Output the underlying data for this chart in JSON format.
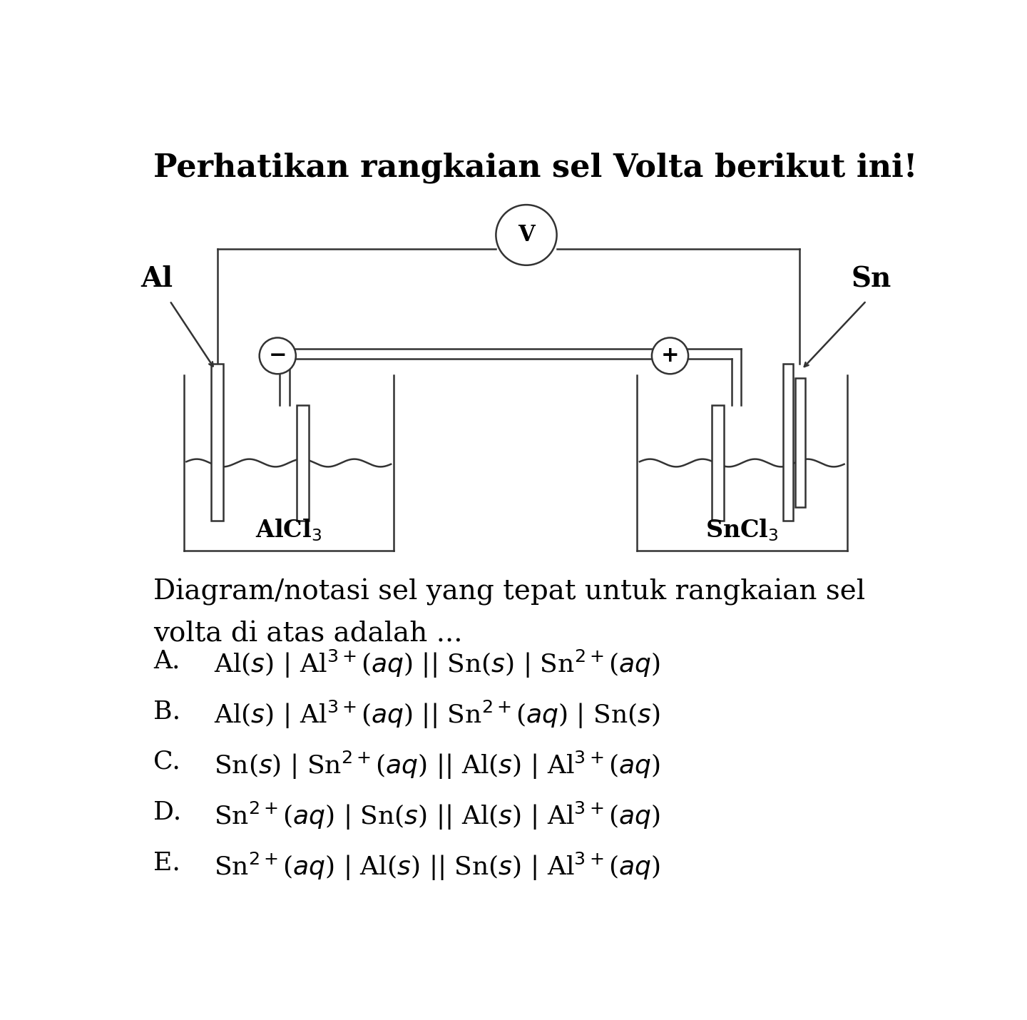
{
  "title": "Perhatikan rangkaian sel Volta berikut ini!",
  "title_fontsize": 32,
  "bg_color": "#ffffff",
  "line_color": "#333333",
  "question_line1": "Diagram/notasi sel yang tepat untuk rangkaian sel",
  "question_line2": "volta di atas adalah ...",
  "question_fontsize": 28,
  "options": [
    {
      "label": "A.",
      "text": "Al($s$) | Al$^{3+}$($aq$) || Sn($s$) | Sn$^{2+}$($aq$)"
    },
    {
      "label": "B.",
      "text": "Al($s$) | Al$^{3+}$($aq$) || Sn$^{2+}$($aq$) | Sn($s$)"
    },
    {
      "label": "C.",
      "text": "Sn($s$) | Sn$^{2+}$($aq$) || Al($s$) | Al$^{3+}$($aq$)"
    },
    {
      "label": "D.",
      "text": "Sn$^{2+}$($aq$) | Sn($s$) || Al($s$) | Al$^{3+}$($aq$)"
    },
    {
      "label": "E.",
      "text": "Sn$^{2+}$($aq$) | Al($s$) || Sn($s$) | Al$^{3+}$($aq$)"
    }
  ],
  "option_fontsize": 26,
  "alcl3_label": "AlCl$_3$",
  "sncl3_label": "SnCl$_3$",
  "al_label": "Al",
  "sn_label": "Sn",
  "voltmeter_label": "V"
}
